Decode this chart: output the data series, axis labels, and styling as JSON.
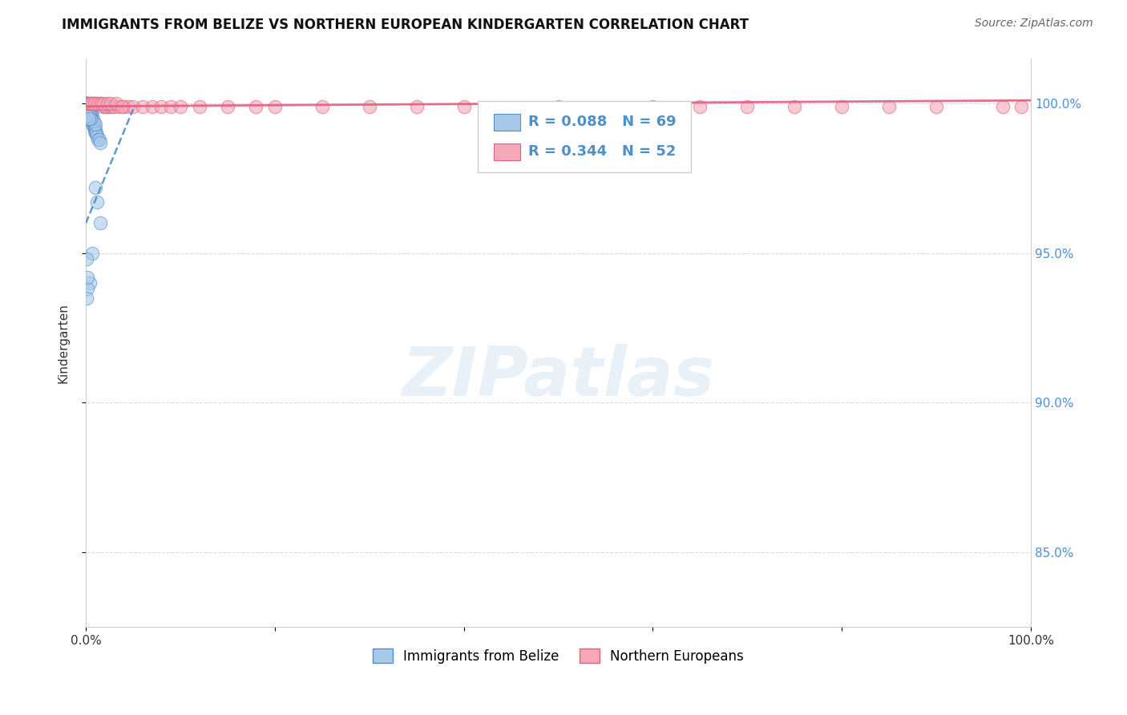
{
  "title": "IMMIGRANTS FROM BELIZE VS NORTHERN EUROPEAN KINDERGARTEN CORRELATION CHART",
  "source_text": "Source: ZipAtlas.com",
  "ylabel": "Kindergarten",
  "xlim": [
    0.0,
    1.0
  ],
  "ylim": [
    0.825,
    1.015
  ],
  "yticks": [
    0.85,
    0.9,
    0.95,
    1.0
  ],
  "ytick_labels": [
    "85.0%",
    "90.0%",
    "95.0%",
    "100.0%"
  ],
  "xticks": [
    0.0,
    0.2,
    0.4,
    0.6,
    0.8,
    1.0
  ],
  "xtick_labels": [
    "0.0%",
    "",
    "",
    "",
    "",
    "100.0%"
  ],
  "blue_R": 0.088,
  "blue_N": 69,
  "pink_R": 0.344,
  "pink_N": 52,
  "blue_fill": "#a8c8e8",
  "pink_fill": "#f4a8b8",
  "blue_edge": "#5090c8",
  "pink_edge": "#e06080",
  "blue_line_color": "#5090c8",
  "pink_line_color": "#e06080",
  "legend_label_blue": "Immigrants from Belize",
  "legend_label_pink": "Northern Europeans",
  "watermark": "ZIPatlas",
  "background_color": "#ffffff",
  "grid_color": "#cccccc",
  "blue_x": [
    0.0008,
    0.001,
    0.0012,
    0.0015,
    0.002,
    0.002,
    0.0025,
    0.003,
    0.003,
    0.003,
    0.004,
    0.004,
    0.005,
    0.005,
    0.005,
    0.006,
    0.006,
    0.007,
    0.007,
    0.008,
    0.008,
    0.009,
    0.009,
    0.01,
    0.01,
    0.011,
    0.012,
    0.013,
    0.014,
    0.015,
    0.0005,
    0.001,
    0.0015,
    0.002,
    0.003,
    0.003,
    0.004,
    0.005,
    0.006,
    0.007,
    0.001,
    0.001,
    0.002,
    0.002,
    0.003,
    0.004,
    0.005,
    0.006,
    0.008,
    0.01,
    0.0005,
    0.001,
    0.001,
    0.002,
    0.003,
    0.004,
    0.005,
    0.001,
    0.002,
    0.003,
    0.012,
    0.015,
    0.01,
    0.007,
    0.004,
    0.002,
    0.001,
    0.001,
    0.002
  ],
  "blue_y": [
    1.0,
    0.999,
    0.999,
    0.999,
    0.999,
    0.998,
    0.998,
    0.998,
    0.997,
    0.997,
    0.997,
    0.996,
    0.996,
    0.996,
    0.995,
    0.995,
    0.994,
    0.994,
    0.993,
    0.993,
    0.992,
    0.992,
    0.991,
    0.991,
    0.99,
    0.99,
    0.989,
    0.988,
    0.988,
    0.987,
    1.0,
    1.0,
    0.999,
    0.999,
    0.999,
    0.998,
    0.998,
    0.997,
    0.997,
    0.996,
    0.999,
    0.998,
    0.998,
    0.997,
    0.997,
    0.996,
    0.996,
    0.995,
    0.994,
    0.993,
    1.0,
    0.999,
    0.998,
    0.998,
    0.997,
    0.996,
    0.995,
    0.997,
    0.996,
    0.995,
    0.967,
    0.96,
    0.972,
    0.95,
    0.94,
    0.938,
    0.935,
    0.948,
    0.942
  ],
  "pink_x": [
    0.002,
    0.004,
    0.006,
    0.008,
    0.01,
    0.012,
    0.015,
    0.018,
    0.02,
    0.022,
    0.025,
    0.028,
    0.03,
    0.035,
    0.04,
    0.045,
    0.05,
    0.06,
    0.07,
    0.08,
    0.09,
    0.1,
    0.12,
    0.15,
    0.18,
    0.2,
    0.25,
    0.3,
    0.35,
    0.4,
    0.5,
    0.6,
    0.65,
    0.7,
    0.75,
    0.8,
    0.85,
    0.9,
    0.001,
    0.003,
    0.005,
    0.007,
    0.009,
    0.013,
    0.016,
    0.019,
    0.023,
    0.026,
    0.032,
    0.038,
    0.97,
    0.99
  ],
  "pink_y": [
    1.0,
    1.0,
    1.0,
    1.0,
    1.0,
    1.0,
    1.0,
    0.999,
    0.999,
    0.999,
    0.999,
    0.999,
    0.999,
    0.999,
    0.999,
    0.999,
    0.999,
    0.999,
    0.999,
    0.999,
    0.999,
    0.999,
    0.999,
    0.999,
    0.999,
    0.999,
    0.999,
    0.999,
    0.999,
    0.999,
    0.999,
    0.999,
    0.999,
    0.999,
    0.999,
    0.999,
    0.999,
    0.999,
    1.0,
    1.0,
    1.0,
    1.0,
    1.0,
    1.0,
    1.0,
    1.0,
    1.0,
    1.0,
    1.0,
    0.999,
    0.999,
    0.999
  ],
  "blue_trendline_x": [
    0.0,
    0.05
  ],
  "blue_trendline_y": [
    0.96,
    0.998
  ],
  "pink_trendline_x": [
    0.0,
    1.0
  ],
  "pink_trendline_y": [
    0.999,
    1.001
  ]
}
